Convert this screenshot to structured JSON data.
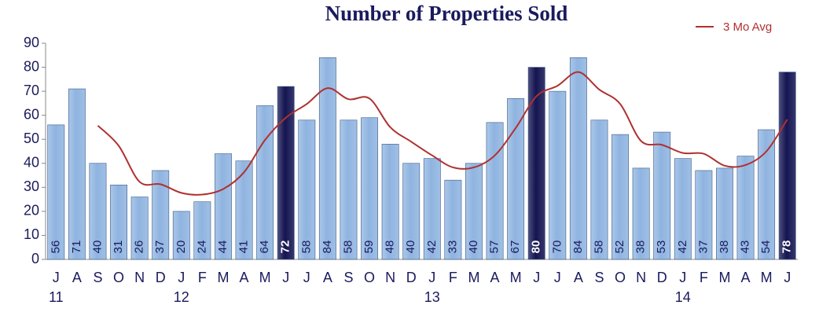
{
  "chart_data": {
    "type": "bar",
    "title": "Number of Properties Sold",
    "categories": [
      "J",
      "A",
      "S",
      "O",
      "N",
      "D",
      "J",
      "F",
      "M",
      "A",
      "M",
      "J",
      "J",
      "A",
      "S",
      "O",
      "N",
      "D",
      "J",
      "F",
      "M",
      "A",
      "M",
      "J",
      "J",
      "A",
      "S",
      "O",
      "N",
      "D",
      "J",
      "F",
      "M",
      "A",
      "M",
      "J"
    ],
    "year_labels": [
      "11",
      null,
      null,
      null,
      null,
      null,
      "12",
      null,
      null,
      null,
      null,
      null,
      null,
      null,
      null,
      null,
      null,
      null,
      "13",
      null,
      null,
      null,
      null,
      null,
      null,
      null,
      null,
      null,
      null,
      null,
      "14",
      null,
      null,
      null,
      null,
      null
    ],
    "values": [
      56,
      71,
      40,
      31,
      26,
      37,
      20,
      24,
      44,
      41,
      64,
      72,
      58,
      84,
      58,
      59,
      48,
      40,
      42,
      33,
      40,
      57,
      67,
      80,
      70,
      84,
      58,
      52,
      38,
      53,
      42,
      37,
      38,
      43,
      54,
      78
    ],
    "colors": [
      "#8fb4e0",
      "#8fb4e0",
      "#8fb4e0",
      "#8fb4e0",
      "#8fb4e0",
      "#8fb4e0",
      "#8fb4e0",
      "#8fb4e0",
      "#8fb4e0",
      "#8fb4e0",
      "#8fb4e0",
      "#141452",
      "#8fb4e0",
      "#8fb4e0",
      "#8fb4e0",
      "#8fb4e0",
      "#8fb4e0",
      "#8fb4e0",
      "#8fb4e0",
      "#8fb4e0",
      "#8fb4e0",
      "#8fb4e0",
      "#8fb4e0",
      "#141452",
      "#8fb4e0",
      "#8fb4e0",
      "#8fb4e0",
      "#8fb4e0",
      "#8fb4e0",
      "#8fb4e0",
      "#8fb4e0",
      "#8fb4e0",
      "#8fb4e0",
      "#8fb4e0",
      "#8fb4e0",
      "#141452"
    ],
    "line": {
      "type": "line",
      "name": "3 Mo Avg",
      "color": "#b03030",
      "values": [
        null,
        null,
        55.7,
        47.3,
        32.3,
        31.3,
        27.7,
        27,
        29.3,
        36.3,
        49.7,
        59,
        64.7,
        71.3,
        66.7,
        67,
        55,
        49,
        43.3,
        38.3,
        38.3,
        43.3,
        54.7,
        68,
        72.3,
        78,
        70.7,
        64.7,
        49.3,
        47.7,
        44.3,
        44,
        39,
        39.3,
        45,
        58.3
      ]
    },
    "ylim": [
      0,
      90
    ],
    "yticks": [
      0,
      10,
      20,
      30,
      40,
      50,
      60,
      70,
      80,
      90
    ]
  }
}
